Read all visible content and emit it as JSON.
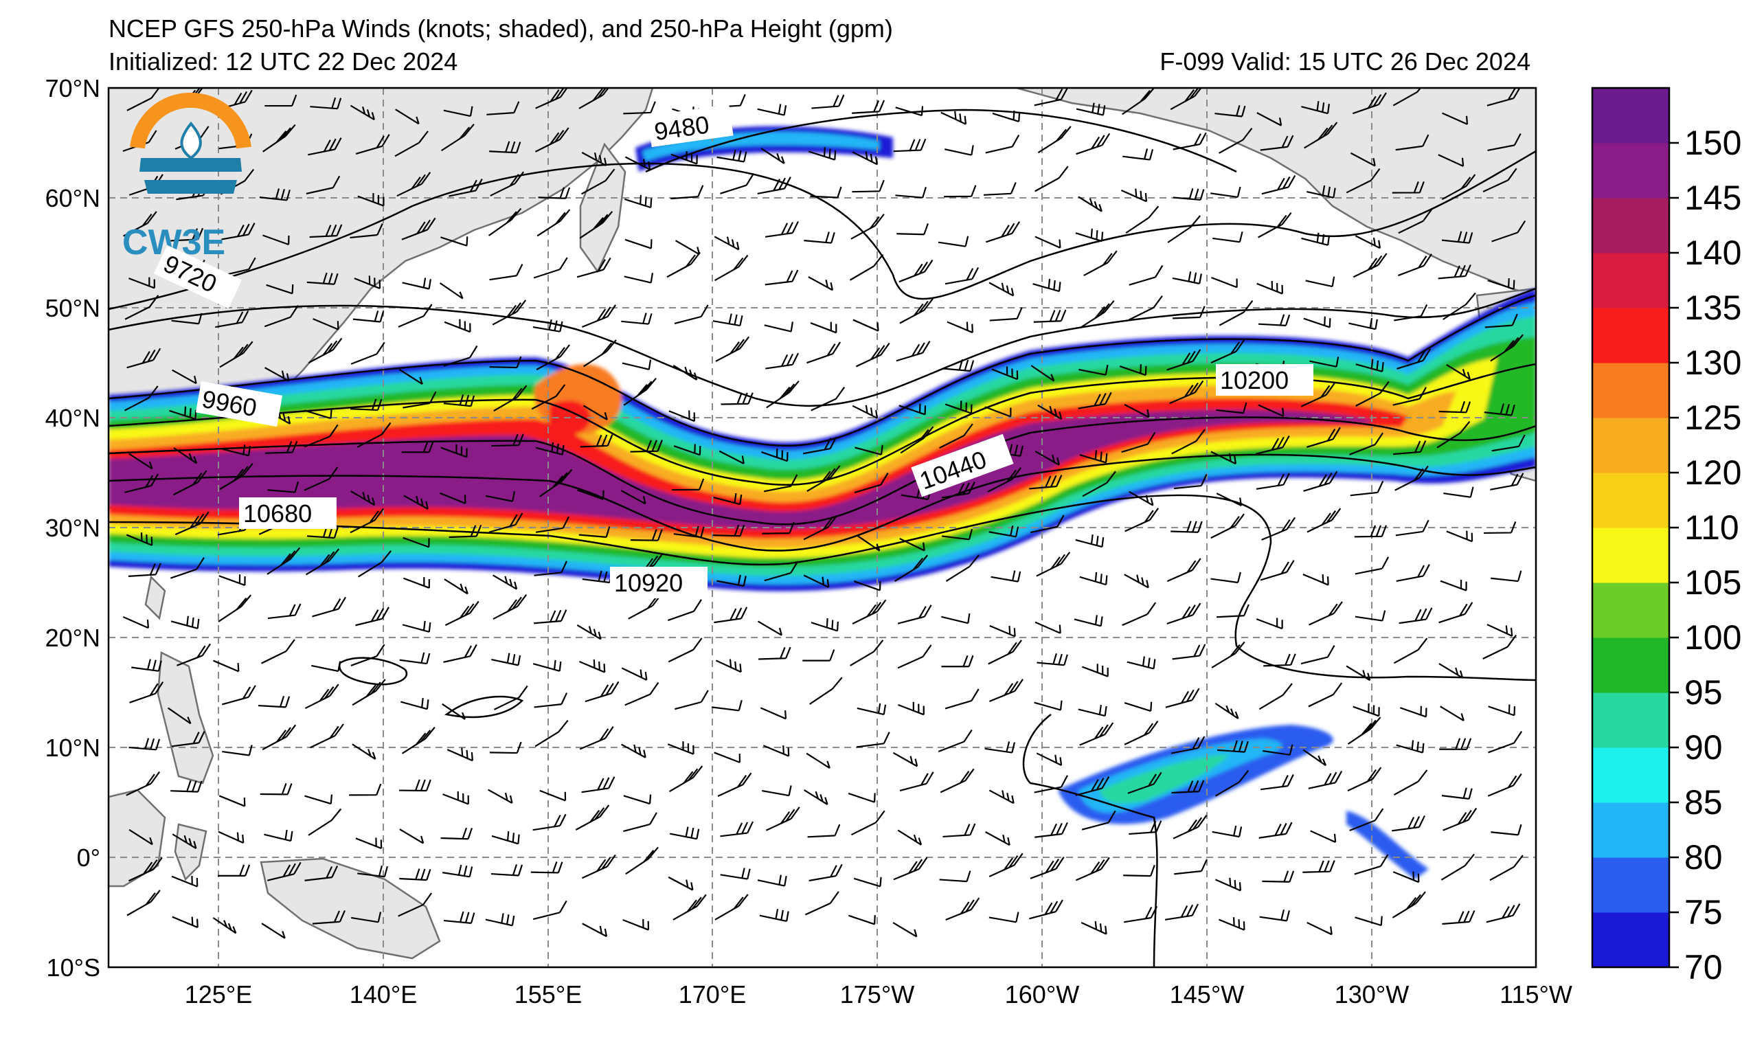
{
  "title": {
    "line1": "NCEP GFS 250-hPa Winds (knots; shaded), and 250-hPa Height (gpm)",
    "init": "Initialized: 12 UTC 22 Dec 2024",
    "valid": "F-099  Valid: 15 UTC 26 Dec 2024"
  },
  "logo": {
    "text": "CW3E",
    "ring_color": "#f7941d",
    "wave_color": "#1f7fa8"
  },
  "axes": {
    "lat_labels": [
      "70°N",
      "60°N",
      "50°N",
      "40°N",
      "30°N",
      "20°N",
      "10°N",
      "0°",
      "10°S"
    ],
    "lon_labels": [
      "125°E",
      "140°E",
      "155°E",
      "170°E",
      "175°W",
      "160°W",
      "145°W",
      "130°W",
      "115°W"
    ]
  },
  "contour_labels": [
    "9480",
    "9720",
    "9960",
    "10200",
    "10440",
    "10680",
    "10920"
  ],
  "colorbar": {
    "ticks": [
      "70",
      "75",
      "80",
      "85",
      "90",
      "95",
      "100",
      "105",
      "110",
      "120",
      "125",
      "130",
      "135",
      "140",
      "145",
      "150"
    ],
    "colors": [
      "#1a1ad6",
      "#2a5cf0",
      "#22b6f6",
      "#1ef0ee",
      "#28d8a0",
      "#20b828",
      "#6ccc28",
      "#f8f818",
      "#f8d018",
      "#f8ac20",
      "#f87c20",
      "#f81c1c",
      "#d81c40",
      "#a81c60",
      "#8a1c88",
      "#6a1c8c"
    ]
  },
  "colors": {
    "land": "#e6e6e6",
    "coast": "#707070",
    "grid": "#8a8a8a",
    "contour": "#000000"
  }
}
